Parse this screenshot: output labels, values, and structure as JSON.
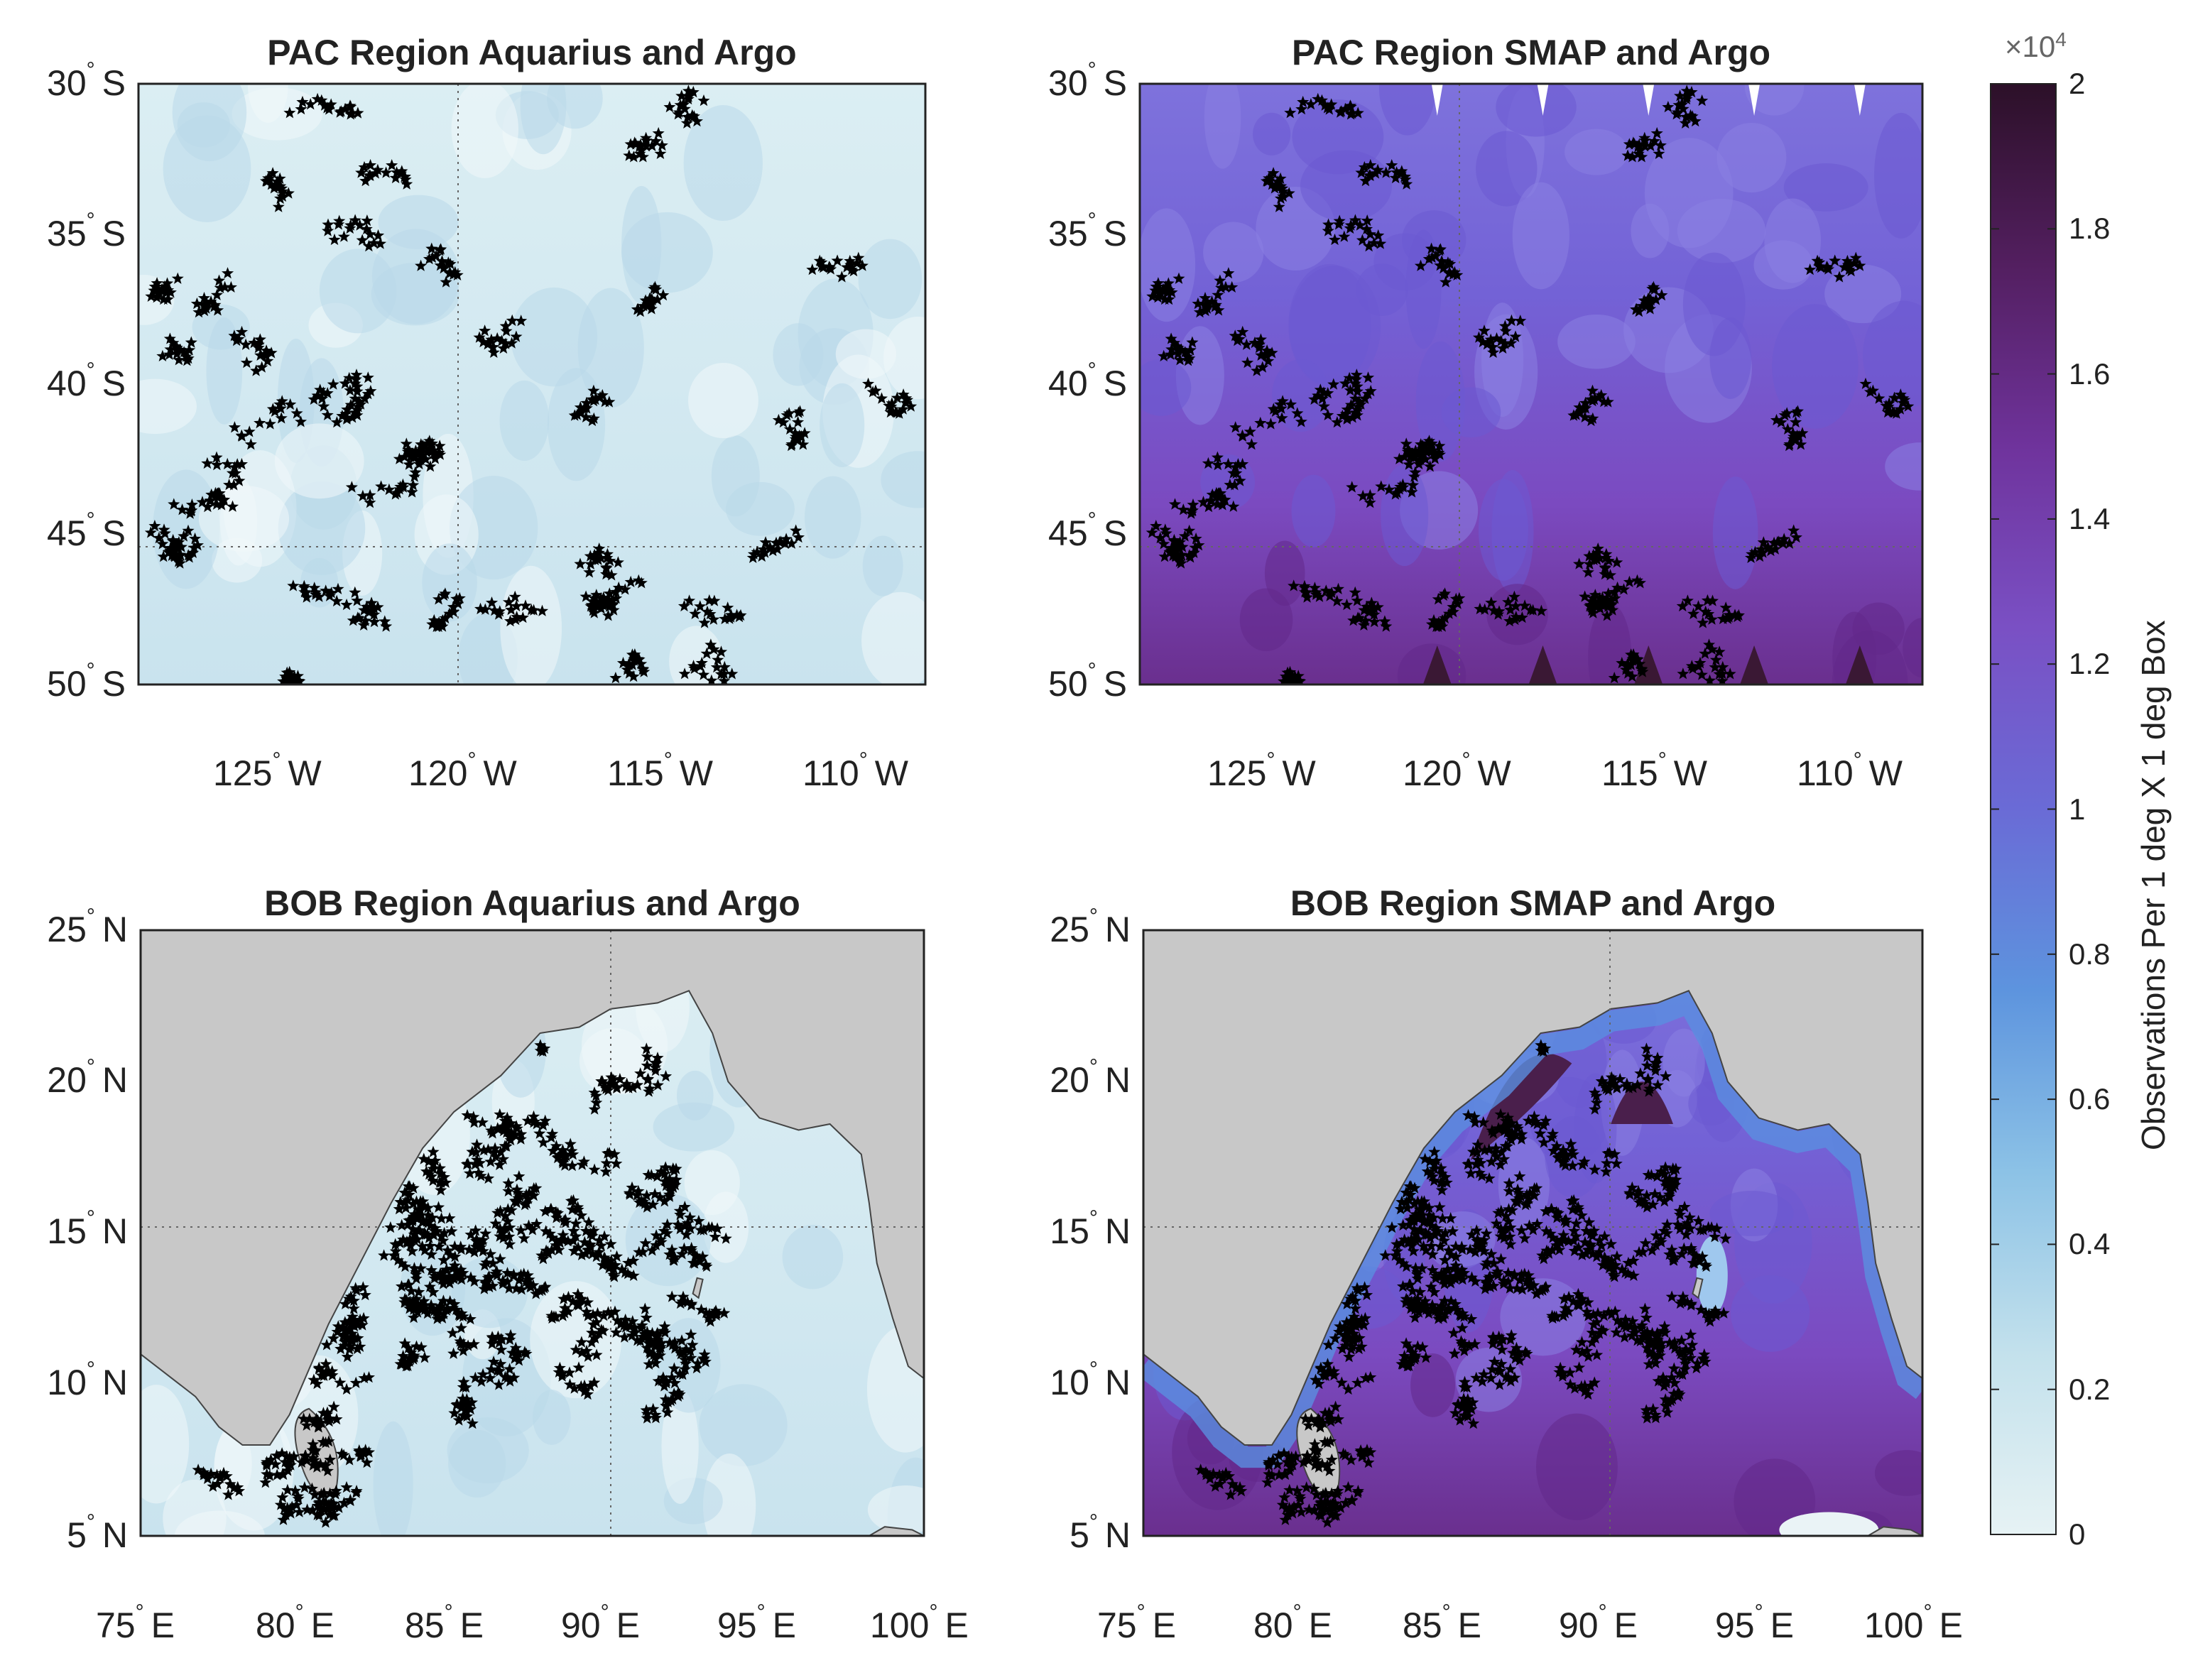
{
  "panels": [
    {
      "title": "PAC Region Aquarius and Argo",
      "lat_labels": [
        "30",
        "35",
        "40",
        "45",
        "50"
      ],
      "lat_hemi": "S",
      "lon_labels": [
        "125",
        "120",
        "115",
        "110"
      ],
      "lon_hemi": "W",
      "field": "low",
      "land": "none"
    },
    {
      "title": "PAC Region SMAP and Argo",
      "lat_labels": [
        "30",
        "35",
        "40",
        "45",
        "50"
      ],
      "lat_hemi": "S",
      "lon_labels": [
        "125",
        "120",
        "115",
        "110"
      ],
      "lon_hemi": "W",
      "field": "high",
      "land": "none"
    },
    {
      "title": "BOB Region Aquarius and Argo",
      "lat_labels": [
        "25",
        "20",
        "15",
        "10",
        "5"
      ],
      "lat_hemi": "N",
      "lon_labels": [
        "75",
        "80",
        "85",
        "90",
        "95",
        "100"
      ],
      "lon_hemi": "E",
      "field": "low",
      "land": "bay_of_bengal"
    },
    {
      "title": "BOB Region SMAP and Argo",
      "lat_labels": [
        "25",
        "20",
        "15",
        "10",
        "5"
      ],
      "lat_hemi": "N",
      "lon_labels": [
        "75",
        "80",
        "85",
        "90",
        "95",
        "100"
      ],
      "lon_hemi": "E",
      "field": "high",
      "land": "bay_of_bengal"
    }
  ],
  "colorbar": {
    "label": "Observations Per 1 deg X 1 deg Box",
    "exponent_base": "×10",
    "exponent_power": "4",
    "ticks": [
      "2",
      "1.8",
      "1.6",
      "1.4",
      "1.2",
      "1",
      "0.8",
      "0.6",
      "0.4",
      "0.2",
      "0"
    ],
    "colors": [
      "#e6f2f4",
      "#c3e1ec",
      "#8cc2e6",
      "#5d94de",
      "#6a6bd6",
      "#7a50c4",
      "#6f339c",
      "#531f60",
      "#2c1028"
    ]
  },
  "styles": {
    "land_color": "#c8c8c8",
    "coast_color": "#444444",
    "float_marker_color": "#000000",
    "frame_color": "#222222",
    "grid_color": "#666666"
  }
}
